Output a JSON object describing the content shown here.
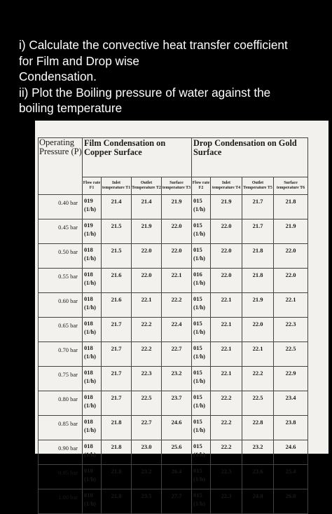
{
  "question": {
    "lines": [
      "i) Calculate the convective heat transfer coefficient",
      "for Film and Drop wise",
      "Condensation.",
      "ii) Plot the Boiling pressure of water against the",
      "boiling temperature"
    ]
  },
  "table": {
    "header": {
      "pressure": "Operating Pressure (P)",
      "film": "Film Condensation on Copper Surface",
      "drop": "Drop Condensation on Gold Surface"
    },
    "subheaders": [
      "Flow rate F1",
      "Inlet temperature T1",
      "Outlet Temperature T2",
      "Surface temperature T3",
      "Flow rate F2",
      "Inlet temperature T4",
      "Outlet Temperature T5",
      "Surface temperature T6"
    ],
    "rows": [
      {
        "p": "0.40 bar",
        "f1": "019",
        "f1u": "(1/h)",
        "t1": "21.4",
        "t2": "21.4",
        "t3": "21.9",
        "f2": "015",
        "f2u": "(1/h)",
        "t4": "21.9",
        "t5": "21.7",
        "t6": "21.8"
      },
      {
        "p": "0.45 bar",
        "f1": "019",
        "f1u": "(1/h)",
        "t1": "21.5",
        "t2": "21.9",
        "t3": "22.0",
        "f2": "015",
        "f2u": "(1/h)",
        "t4": "22.0",
        "t5": "21.7",
        "t6": "21.9"
      },
      {
        "p": "0.50 bar",
        "f1": "018",
        "f1u": "(1/h)",
        "t1": "21.5",
        "t2": "22.0",
        "t3": "22.0",
        "f2": "015",
        "f2u": "(1/h)",
        "t4": "22.0",
        "t5": "21.8",
        "t6": "22.0"
      },
      {
        "p": "0.55 bar",
        "f1": "018",
        "f1u": "(1/h)",
        "t1": "21.6",
        "t2": "22.0",
        "t3": "22.1",
        "f2": "016",
        "f2u": "(1/h)",
        "t4": "22.0",
        "t5": "21.8",
        "t6": "22.0"
      },
      {
        "p": "0.60 bar",
        "f1": "018",
        "f1u": "(1/h)",
        "t1": "21.6",
        "t2": "22.1",
        "t3": "22.2",
        "f2": "015",
        "f2u": "(1/h)",
        "t4": "22.1",
        "t5": "21.9",
        "t6": "22.1"
      },
      {
        "p": "0.65 bar",
        "f1": "018",
        "f1u": "(1/h)",
        "t1": "21.7",
        "t2": "22.2",
        "t3": "22.4",
        "f2": "015",
        "f2u": "(1/h)",
        "t4": "22.1",
        "t5": "22.0",
        "t6": "22.3"
      },
      {
        "p": "0.70 bar",
        "f1": "018",
        "f1u": "(1/h)",
        "t1": "21.7",
        "t2": "22.2",
        "t3": "22.7",
        "f2": "015",
        "f2u": "(1/h)",
        "t4": "22.1",
        "t5": "22.1",
        "t6": "22.5"
      },
      {
        "p": "0.75 bar",
        "f1": "018",
        "f1u": "(1/h)",
        "t1": "21.7",
        "t2": "22.3",
        "t3": "23.2",
        "f2": "015",
        "f2u": "(1/h)",
        "t4": "22.1",
        "t5": "22.2",
        "t6": "22.9"
      },
      {
        "p": "0.80 bar",
        "f1": "018",
        "f1u": "(1/h)",
        "t1": "21.7",
        "t2": "22.5",
        "t3": "23.7",
        "f2": "015",
        "f2u": "(1/h)",
        "t4": "22.2",
        "t5": "22.5",
        "t6": "23.4"
      },
      {
        "p": "0.85 bar",
        "f1": "018",
        "f1u": "(1/h)",
        "t1": "21.8",
        "t2": "22.7",
        "t3": "24.6",
        "f2": "015",
        "f2u": "(1/h)",
        "t4": "22.2",
        "t5": "22.8",
        "t6": "23.8"
      },
      {
        "p": "0.90 bar",
        "f1": "018",
        "f1u": "(1/h)",
        "t1": "21.8",
        "t2": "23.0",
        "t3": "25.6",
        "f2": "015",
        "f2u": "(1/h)",
        "t4": "22.2",
        "t5": "23.2",
        "t6": "24.6"
      },
      {
        "p": "0.95 bar",
        "f1": "018",
        "f1u": "(1/h)",
        "t1": "21.8",
        "t2": "23.2",
        "t3": "26.4",
        "f2": "015",
        "f2u": "(1/h)",
        "t4": "22.3",
        "t5": "23.6",
        "t6": "25.4"
      },
      {
        "p": "1.00 bar",
        "f1": "018",
        "f1u": "(1/h)",
        "t1": "21.8",
        "t2": "23.5",
        "t3": "27.7",
        "f2": "015",
        "f2u": "(1/h)",
        "t4": "22.3",
        "t5": "24.0",
        "t6": "26.0"
      }
    ]
  },
  "colors": {
    "background": "#000000",
    "text": "#ffffff",
    "sheet": "#f3f1ee"
  }
}
